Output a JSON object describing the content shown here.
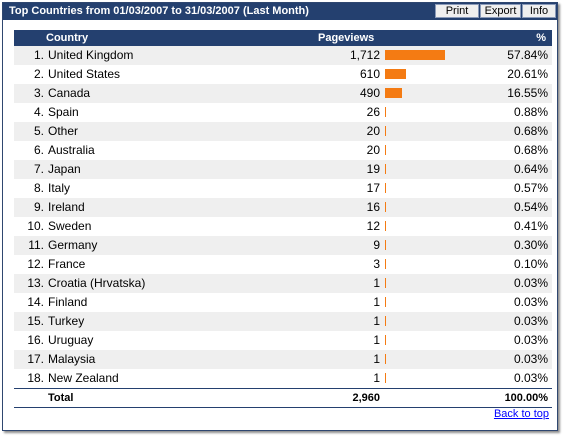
{
  "header": {
    "title": "Top Countries from 01/03/2007 to 31/03/2007 (Last Month)",
    "buttons": {
      "print": "Print",
      "export": "Export",
      "info": "Info"
    }
  },
  "table": {
    "columns": {
      "country": "Country",
      "pageviews": "Pageviews",
      "percent": "%"
    },
    "rows": [
      {
        "rank": "1.",
        "country": "United Kingdom",
        "pageviews": "1,712",
        "percent": "57.84%",
        "share": 0.5784
      },
      {
        "rank": "2.",
        "country": "United States",
        "pageviews": "610",
        "percent": "20.61%",
        "share": 0.2061
      },
      {
        "rank": "3.",
        "country": "Canada",
        "pageviews": "490",
        "percent": "16.55%",
        "share": 0.1655
      },
      {
        "rank": "4.",
        "country": "Spain",
        "pageviews": "26",
        "percent": "0.88%",
        "share": 0.0088
      },
      {
        "rank": "5.",
        "country": "Other",
        "pageviews": "20",
        "percent": "0.68%",
        "share": 0.0068
      },
      {
        "rank": "6.",
        "country": "Australia",
        "pageviews": "20",
        "percent": "0.68%",
        "share": 0.0068
      },
      {
        "rank": "7.",
        "country": "Japan",
        "pageviews": "19",
        "percent": "0.64%",
        "share": 0.0064
      },
      {
        "rank": "8.",
        "country": "Italy",
        "pageviews": "17",
        "percent": "0.57%",
        "share": 0.0057
      },
      {
        "rank": "9.",
        "country": "Ireland",
        "pageviews": "16",
        "percent": "0.54%",
        "share": 0.0054
      },
      {
        "rank": "10.",
        "country": "Sweden",
        "pageviews": "12",
        "percent": "0.41%",
        "share": 0.0041
      },
      {
        "rank": "11.",
        "country": "Germany",
        "pageviews": "9",
        "percent": "0.30%",
        "share": 0.003
      },
      {
        "rank": "12.",
        "country": "France",
        "pageviews": "3",
        "percent": "0.10%",
        "share": 0.001
      },
      {
        "rank": "13.",
        "country": "Croatia (Hrvatska)",
        "pageviews": "1",
        "percent": "0.03%",
        "share": 0.0003
      },
      {
        "rank": "14.",
        "country": "Finland",
        "pageviews": "1",
        "percent": "0.03%",
        "share": 0.0003
      },
      {
        "rank": "15.",
        "country": "Turkey",
        "pageviews": "1",
        "percent": "0.03%",
        "share": 0.0003
      },
      {
        "rank": "16.",
        "country": "Uruguay",
        "pageviews": "1",
        "percent": "0.03%",
        "share": 0.0003
      },
      {
        "rank": "17.",
        "country": "Malaysia",
        "pageviews": "1",
        "percent": "0.03%",
        "share": 0.0003
      },
      {
        "rank": "18.",
        "country": "New Zealand",
        "pageviews": "1",
        "percent": "0.03%",
        "share": 0.0003
      }
    ],
    "total": {
      "label": "Total",
      "pageviews": "2,960",
      "percent": "100.00%"
    }
  },
  "footer": {
    "back_to_top": "Back to top"
  },
  "colors": {
    "header_bg": "#24406f",
    "bar": "#f47b13",
    "row_alt": "#efefef",
    "link": "#0000ff"
  }
}
